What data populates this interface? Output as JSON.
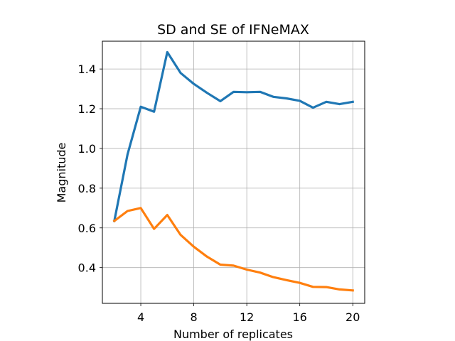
{
  "chart_data": {
    "type": "line",
    "title": "SD and SE of IFNeMAX",
    "xlabel": "Number of replicates",
    "ylabel": "Magnitude",
    "xlim": [
      1.1,
      20.9
    ],
    "ylim": [
      0.22,
      1.54
    ],
    "xticks": [
      4,
      8,
      12,
      16,
      20
    ],
    "yticks": [
      0.4,
      0.6,
      0.8,
      1.0,
      1.2,
      1.4
    ],
    "ytick_labels": [
      "0.4",
      "0.6",
      "0.8",
      "1.0",
      "1.2",
      "1.4"
    ],
    "grid": true,
    "x": [
      2,
      3,
      4,
      5,
      6,
      7,
      8,
      9,
      10,
      11,
      12,
      13,
      14,
      15,
      16,
      17,
      18,
      19,
      20
    ],
    "series": [
      {
        "color": "#1f77b4",
        "values": [
          0.635,
          0.97,
          1.21,
          1.185,
          1.485,
          1.38,
          1.325,
          1.28,
          1.238,
          1.285,
          1.283,
          1.285,
          1.26,
          1.252,
          1.24,
          1.205,
          1.235,
          1.223,
          1.235
        ]
      },
      {
        "color": "#ff7f0e",
        "values": [
          0.635,
          0.685,
          0.7,
          0.595,
          0.665,
          0.565,
          0.505,
          0.455,
          0.415,
          0.41,
          0.39,
          0.375,
          0.352,
          0.337,
          0.323,
          0.303,
          0.302,
          0.29,
          0.285
        ]
      }
    ]
  }
}
